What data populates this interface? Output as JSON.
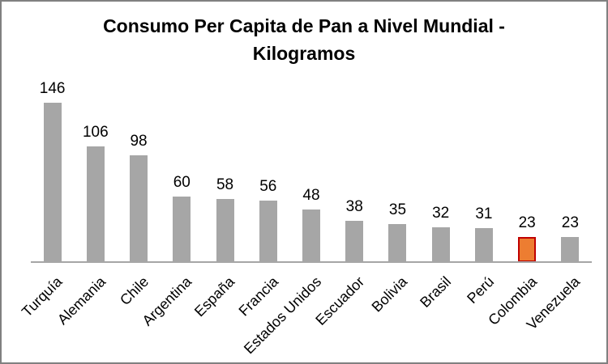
{
  "chart_data": {
    "type": "bar",
    "title": "Consumo Per Capita de Pan a Nivel Mundial - Kilogramos",
    "title_lines": [
      "Consumo Per Capita de Pan a Nivel Mundial -",
      "Kilogramos"
    ],
    "categories": [
      "Turquía",
      "Alemania",
      "Chile",
      "Argentina",
      "España",
      "Francia",
      "Estados Unidos",
      "Escuador",
      "Bolivia",
      "Brasil",
      "Perú",
      "Colombia",
      "Venezuela"
    ],
    "values": [
      146,
      106,
      98,
      60,
      58,
      56,
      48,
      38,
      35,
      32,
      31,
      23,
      23
    ],
    "data_labels_shown": true,
    "xlabel": "",
    "ylabel": "",
    "ylim": [
      0,
      160
    ],
    "grid": false,
    "legend": false,
    "x_tick_rotation_deg": 45,
    "highlight_category": "Colombia",
    "highlight_index": 11,
    "colors": {
      "bar_fill": "#a6a6a6",
      "highlight_fill": "#ed7d31",
      "highlight_border": "#c00000",
      "axis_line": "#a6a6a6",
      "text": "#000000",
      "frame_border": "#808080",
      "background": "#ffffff"
    }
  }
}
